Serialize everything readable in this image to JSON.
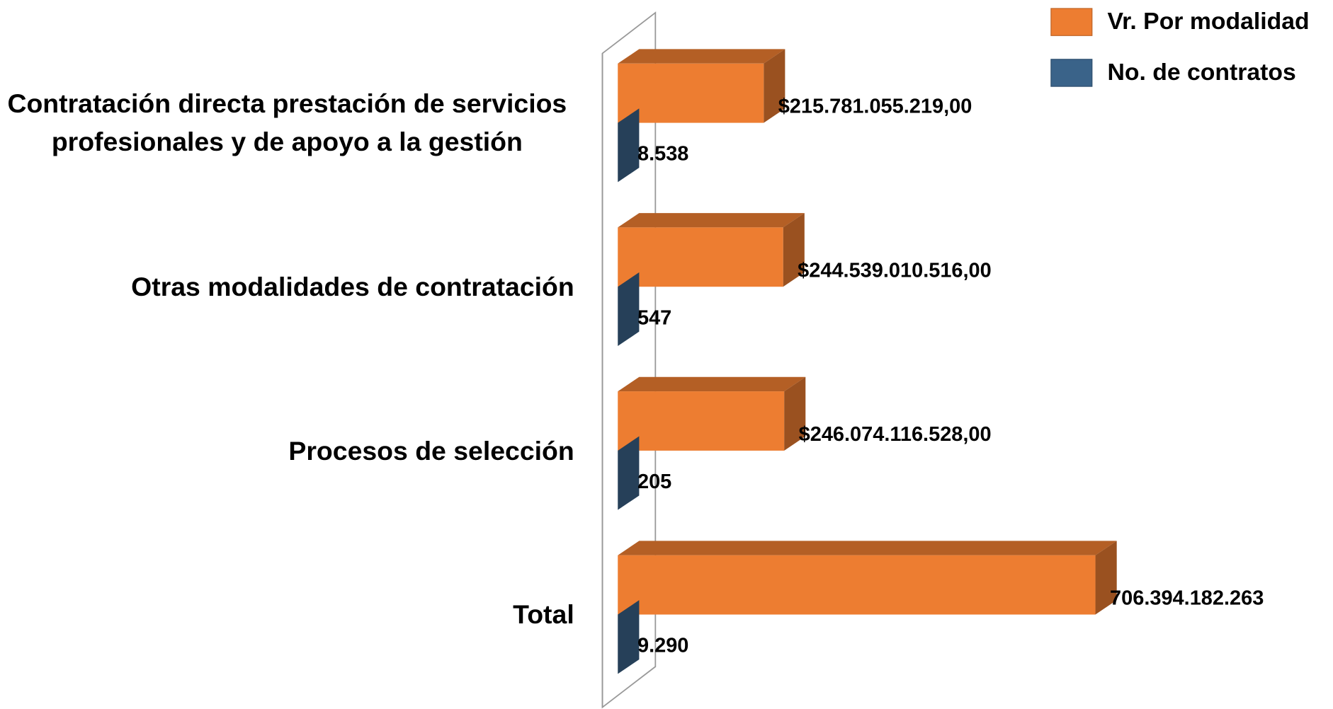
{
  "chart_data": {
    "type": "bar3d",
    "orientation": "horizontal",
    "categories": [
      "Contratación directa prestación de servicios profesionales y de apoyo a la gestión",
      "Otras modalidades de contratación",
      "Procesos de selección",
      "Total"
    ],
    "series": [
      {
        "name": "Vr. Por modalidad",
        "color": "#ED7D31",
        "values": [
          215781055219,
          244539010516,
          246074116528,
          706394182263
        ],
        "value_labels": [
          "$215.781.055.219,00",
          "$244.539.010.516,00",
          "$246.074.116.528,00",
          "706.394.182.263"
        ]
      },
      {
        "name": "No. de contratos",
        "color": "#3A6389",
        "values": [
          8538,
          547,
          205,
          9290
        ],
        "value_labels": [
          "8.538",
          "547",
          "205",
          "9.290"
        ]
      }
    ],
    "xlim": [
      0,
      800000000000
    ],
    "legend": "top-right"
  }
}
